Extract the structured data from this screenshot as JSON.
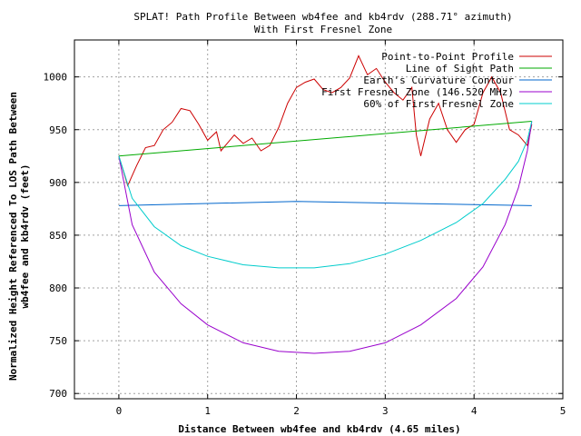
{
  "chart_data": {
    "type": "line",
    "title": "SPLAT! Path Profile Between wb4fee and kb4rdv (288.71° azimuth)",
    "subtitle": "With First Fresnel Zone",
    "xlabel": "Distance Between wb4fee and kb4rdv (4.65 miles)",
    "ylabel": "Normalized Height Referenced To LOS Path Between wb4fee and kb4rdv (feet)",
    "xlim": [
      -0.5,
      5
    ],
    "ylim": [
      695,
      1035
    ],
    "xticks": [
      0,
      1,
      2,
      3,
      4,
      5
    ],
    "yticks": [
      700,
      750,
      800,
      850,
      900,
      950,
      1000
    ],
    "grid": true,
    "legend_position": "top-right",
    "series": [
      {
        "name": "Point-to-Point Profile",
        "color": "#cc0000",
        "points": [
          [
            0,
            925
          ],
          [
            0.1,
            897
          ],
          [
            0.2,
            916
          ],
          [
            0.3,
            933
          ],
          [
            0.4,
            935
          ],
          [
            0.5,
            950
          ],
          [
            0.6,
            957
          ],
          [
            0.7,
            970
          ],
          [
            0.8,
            968
          ],
          [
            0.9,
            955
          ],
          [
            1.0,
            940
          ],
          [
            1.1,
            948
          ],
          [
            1.15,
            930
          ],
          [
            1.2,
            935
          ],
          [
            1.3,
            945
          ],
          [
            1.4,
            937
          ],
          [
            1.5,
            942
          ],
          [
            1.6,
            930
          ],
          [
            1.7,
            935
          ],
          [
            1.8,
            952
          ],
          [
            1.9,
            975
          ],
          [
            2.0,
            990
          ],
          [
            2.1,
            995
          ],
          [
            2.2,
            998
          ],
          [
            2.3,
            988
          ],
          [
            2.4,
            985
          ],
          [
            2.5,
            990
          ],
          [
            2.6,
            999
          ],
          [
            2.7,
            1020
          ],
          [
            2.8,
            1002
          ],
          [
            2.9,
            1008
          ],
          [
            3.0,
            995
          ],
          [
            3.1,
            985
          ],
          [
            3.2,
            978
          ],
          [
            3.3,
            990
          ],
          [
            3.35,
            945
          ],
          [
            3.4,
            925
          ],
          [
            3.5,
            960
          ],
          [
            3.6,
            975
          ],
          [
            3.7,
            950
          ],
          [
            3.8,
            938
          ],
          [
            3.9,
            950
          ],
          [
            4.0,
            955
          ],
          [
            4.1,
            985
          ],
          [
            4.2,
            1000
          ],
          [
            4.3,
            985
          ],
          [
            4.4,
            950
          ],
          [
            4.5,
            945
          ],
          [
            4.6,
            935
          ],
          [
            4.65,
            955
          ]
        ]
      },
      {
        "name": "Line of Sight Path",
        "color": "#00aa00",
        "points": [
          [
            0,
            925
          ],
          [
            4.65,
            958
          ]
        ]
      },
      {
        "name": "Earth's Curvature Contour",
        "color": "#0066cc",
        "points": [
          [
            0,
            878
          ],
          [
            2.0,
            882
          ],
          [
            4.65,
            878
          ]
        ]
      },
      {
        "name": "First Fresnel Zone (146.520 MHz)",
        "color": "#9900cc",
        "points": [
          [
            0,
            925
          ],
          [
            0.15,
            860
          ],
          [
            0.4,
            815
          ],
          [
            0.7,
            785
          ],
          [
            1.0,
            765
          ],
          [
            1.4,
            748
          ],
          [
            1.8,
            740
          ],
          [
            2.2,
            738
          ],
          [
            2.6,
            740
          ],
          [
            3.0,
            748
          ],
          [
            3.4,
            765
          ],
          [
            3.8,
            790
          ],
          [
            4.1,
            820
          ],
          [
            4.35,
            860
          ],
          [
            4.5,
            895
          ],
          [
            4.6,
            930
          ],
          [
            4.65,
            958
          ]
        ]
      },
      {
        "name": "60% of First Fresnel Zone",
        "color": "#00cccc",
        "points": [
          [
            0,
            925
          ],
          [
            0.15,
            885
          ],
          [
            0.4,
            858
          ],
          [
            0.7,
            840
          ],
          [
            1.0,
            830
          ],
          [
            1.4,
            822
          ],
          [
            1.8,
            819
          ],
          [
            2.2,
            819
          ],
          [
            2.6,
            823
          ],
          [
            3.0,
            832
          ],
          [
            3.4,
            845
          ],
          [
            3.8,
            862
          ],
          [
            4.1,
            880
          ],
          [
            4.35,
            903
          ],
          [
            4.5,
            920
          ],
          [
            4.6,
            940
          ],
          [
            4.65,
            958
          ]
        ]
      }
    ]
  }
}
